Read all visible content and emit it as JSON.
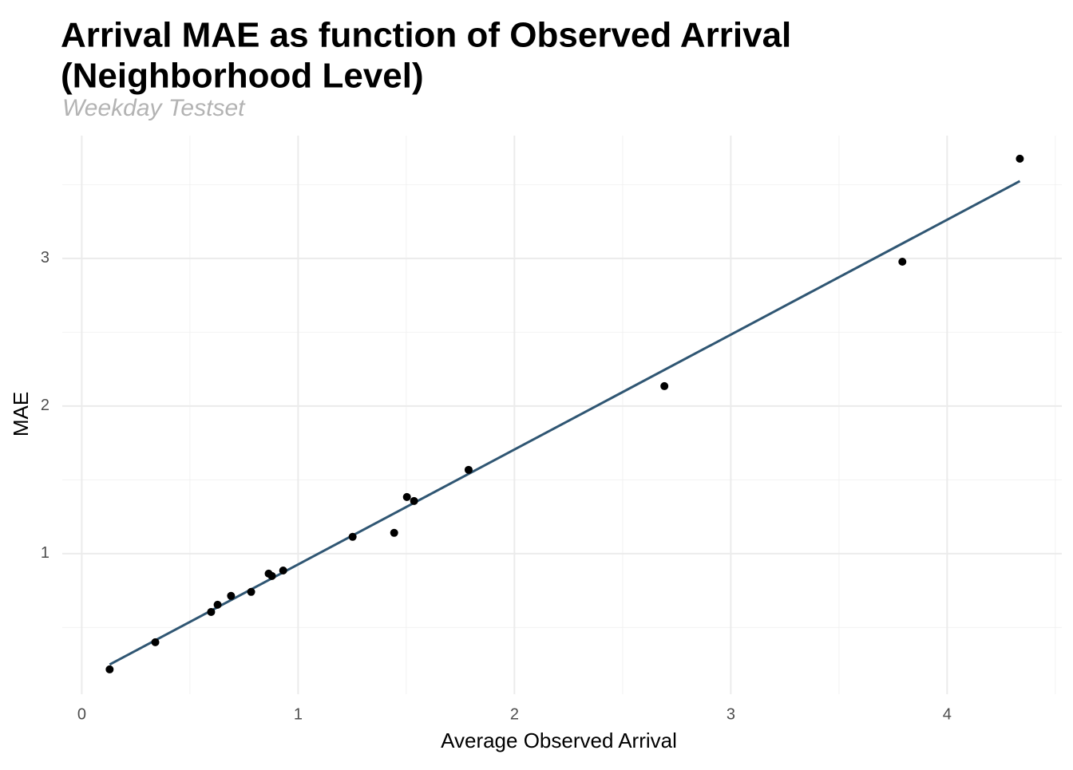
{
  "chart_data": {
    "type": "scatter",
    "title": [
      "Arrival MAE as function of Observed Arrival",
      "(Neighborhood Level)"
    ],
    "subtitle": "Weekday Testset",
    "x_label": "Average Observed Arrival",
    "y_label": "MAE",
    "xlim": [
      -0.09,
      4.53
    ],
    "ylim": [
      0.048,
      3.832
    ],
    "xticks": [
      0,
      1,
      2,
      3,
      4
    ],
    "yticks": [
      1,
      2,
      3
    ],
    "minor_xticks": [
      0.5,
      1.5,
      2.5,
      3.5,
      4.5
    ],
    "minor_yticks": [
      0.5,
      1.5,
      2.5,
      3.5
    ],
    "grid": true,
    "series": [
      {
        "color": "#000000",
        "x": [
          0.129,
          0.34,
          0.598,
          0.628,
          0.69,
          0.783,
          0.864,
          0.879,
          0.931,
          1.252,
          1.444,
          1.503,
          1.536,
          1.788,
          2.693,
          3.793,
          4.336
        ],
        "values": [
          0.216,
          0.4,
          0.605,
          0.654,
          0.714,
          0.741,
          0.865,
          0.849,
          0.886,
          1.114,
          1.141,
          1.384,
          1.357,
          1.568,
          2.135,
          2.978,
          3.676
        ]
      },
      {
        "type": "line",
        "color": "#2f5673",
        "x": [
          0.129,
          4.336
        ],
        "values": [
          0.249,
          3.524
        ]
      }
    ]
  }
}
